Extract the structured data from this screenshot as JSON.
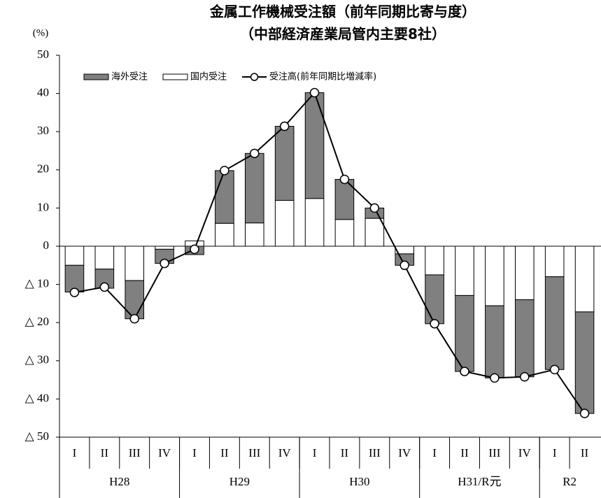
{
  "chart_data": {
    "type": "bar",
    "title": "金属工作機械受注額（前年同期比寄与度）",
    "subtitle": "（中部経済産業局管内主要8社）",
    "y_label": "(%)",
    "categories": [
      "I",
      "II",
      "III",
      "IV",
      "I",
      "II",
      "III",
      "IV",
      "I",
      "II",
      "III",
      "IV",
      "I",
      "II",
      "III",
      "IV",
      "I",
      "II"
    ],
    "x_groups": [
      {
        "label": "H28",
        "count": 4
      },
      {
        "label": "H29",
        "count": 4
      },
      {
        "label": "H30",
        "count": 4
      },
      {
        "label": "H31/R元",
        "count": 4
      },
      {
        "label": "R2",
        "count": 2
      }
    ],
    "ylim": [
      -50,
      50
    ],
    "yticks": [
      {
        "value": -50,
        "label": "△ 50"
      },
      {
        "value": -40,
        "label": "△ 40"
      },
      {
        "value": -30,
        "label": "△ 30"
      },
      {
        "value": -20,
        "label": "△ 20"
      },
      {
        "value": -10,
        "label": "△ 10"
      },
      0,
      10,
      20,
      30,
      40,
      50
    ],
    "grid": false,
    "legend": "top-left",
    "series": [
      {
        "name": "海外受注",
        "type": "bar",
        "color": "#808080",
        "values": [
          -7,
          -5,
          -10,
          -3.7,
          -2.2,
          13.8,
          18.2,
          19.4,
          27.7,
          10.5,
          2.7,
          -3,
          -12.8,
          -19.9,
          -18.9,
          -20.2,
          -24.3,
          -26.6
        ]
      },
      {
        "name": "国内受注",
        "type": "bar",
        "color": "#ffffff",
        "values": [
          -5,
          -6,
          -9,
          -0.8,
          1.4,
          6,
          6.1,
          12,
          12.5,
          7,
          7.3,
          -2,
          -7.5,
          -12.9,
          -15.6,
          -14,
          -8,
          -17.2
        ]
      },
      {
        "name": "受注高(前年同期比増減率)",
        "type": "line",
        "color": "#000000",
        "values": [
          -12.1,
          -10.7,
          -19,
          -4.5,
          -0.8,
          19.8,
          24.3,
          31.4,
          40.2,
          17.5,
          10,
          -5,
          -20.3,
          -32.8,
          -34.5,
          -34.2,
          -32.3,
          -43.8
        ]
      }
    ]
  }
}
